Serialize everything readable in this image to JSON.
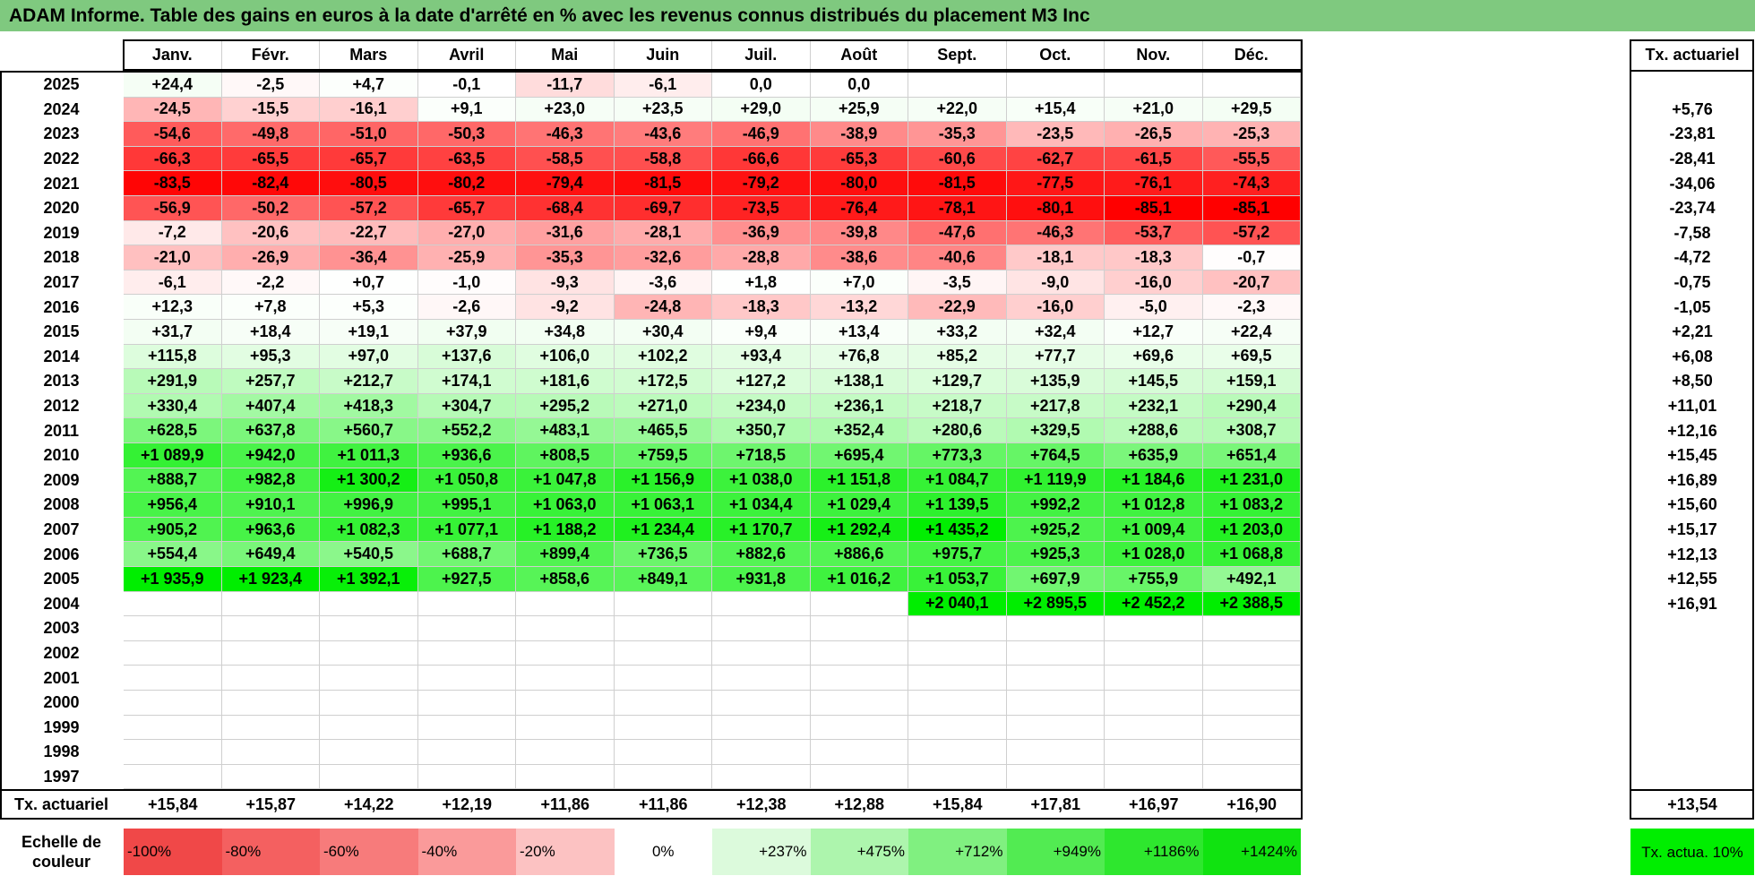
{
  "title": "ADAM Informe. Table des gains en euros à la date d'arrêté en % avec les revenus connus distribués du placement M3 Inc",
  "months": [
    "Janv.",
    "Févr.",
    "Mars",
    "Avril",
    "Mai",
    "Juin",
    "Juil.",
    "Août",
    "Sept.",
    "Oct.",
    "Nov.",
    "Déc."
  ],
  "actuarial_header": "Tx. actuariel",
  "rows": [
    {
      "year": "2025",
      "values": [
        "+24,4",
        "-2,5",
        "+4,7",
        "-0,1",
        "-11,7",
        "-6,1",
        "0,0",
        "0,0",
        "",
        "",
        "",
        ""
      ],
      "actuarial": ""
    },
    {
      "year": "2024",
      "values": [
        "-24,5",
        "-15,5",
        "-16,1",
        "+9,1",
        "+23,0",
        "+23,5",
        "+29,0",
        "+25,9",
        "+22,0",
        "+15,4",
        "+21,0",
        "+29,5"
      ],
      "actuarial": "+5,76"
    },
    {
      "year": "2023",
      "values": [
        "-54,6",
        "-49,8",
        "-51,0",
        "-50,3",
        "-46,3",
        "-43,6",
        "-46,9",
        "-38,9",
        "-35,3",
        "-23,5",
        "-26,5",
        "-25,3"
      ],
      "actuarial": "-23,81"
    },
    {
      "year": "2022",
      "values": [
        "-66,3",
        "-65,5",
        "-65,7",
        "-63,5",
        "-58,5",
        "-58,8",
        "-66,6",
        "-65,3",
        "-60,6",
        "-62,7",
        "-61,5",
        "-55,5"
      ],
      "actuarial": "-28,41"
    },
    {
      "year": "2021",
      "values": [
        "-83,5",
        "-82,4",
        "-80,5",
        "-80,2",
        "-79,4",
        "-81,5",
        "-79,2",
        "-80,0",
        "-81,5",
        "-77,5",
        "-76,1",
        "-74,3"
      ],
      "actuarial": "-34,06"
    },
    {
      "year": "2020",
      "values": [
        "-56,9",
        "-50,2",
        "-57,2",
        "-65,7",
        "-68,4",
        "-69,7",
        "-73,5",
        "-76,4",
        "-78,1",
        "-80,1",
        "-85,1",
        "-85,1"
      ],
      "actuarial": "-23,74"
    },
    {
      "year": "2019",
      "values": [
        "-7,2",
        "-20,6",
        "-22,7",
        "-27,0",
        "-31,6",
        "-28,1",
        "-36,9",
        "-39,8",
        "-47,6",
        "-46,3",
        "-53,7",
        "-57,2"
      ],
      "actuarial": "-7,58"
    },
    {
      "year": "2018",
      "values": [
        "-21,0",
        "-26,9",
        "-36,4",
        "-25,9",
        "-35,3",
        "-32,6",
        "-28,8",
        "-38,6",
        "-40,6",
        "-18,1",
        "-18,3",
        "-0,7"
      ],
      "actuarial": "-4,72"
    },
    {
      "year": "2017",
      "values": [
        "-6,1",
        "-2,2",
        "+0,7",
        "-1,0",
        "-9,3",
        "-3,6",
        "+1,8",
        "+7,0",
        "-3,5",
        "-9,0",
        "-16,0",
        "-20,7"
      ],
      "actuarial": "-0,75"
    },
    {
      "year": "2016",
      "values": [
        "+12,3",
        "+7,8",
        "+5,3",
        "-2,6",
        "-9,2",
        "-24,8",
        "-18,3",
        "-13,2",
        "-22,9",
        "-16,0",
        "-5,0",
        "-2,3"
      ],
      "actuarial": "-1,05"
    },
    {
      "year": "2015",
      "values": [
        "+31,7",
        "+18,4",
        "+19,1",
        "+37,9",
        "+34,8",
        "+30,4",
        "+9,4",
        "+13,4",
        "+33,2",
        "+32,4",
        "+12,7",
        "+22,4"
      ],
      "actuarial": "+2,21"
    },
    {
      "year": "2014",
      "values": [
        "+115,8",
        "+95,3",
        "+97,0",
        "+137,6",
        "+106,0",
        "+102,2",
        "+93,4",
        "+76,8",
        "+85,2",
        "+77,7",
        "+69,6",
        "+69,5"
      ],
      "actuarial": "+6,08"
    },
    {
      "year": "2013",
      "values": [
        "+291,9",
        "+257,7",
        "+212,7",
        "+174,1",
        "+181,6",
        "+172,5",
        "+127,2",
        "+138,1",
        "+129,7",
        "+135,9",
        "+145,5",
        "+159,1"
      ],
      "actuarial": "+8,50"
    },
    {
      "year": "2012",
      "values": [
        "+330,4",
        "+407,4",
        "+418,3",
        "+304,7",
        "+295,2",
        "+271,0",
        "+234,0",
        "+236,1",
        "+218,7",
        "+217,8",
        "+232,1",
        "+290,4"
      ],
      "actuarial": "+11,01"
    },
    {
      "year": "2011",
      "values": [
        "+628,5",
        "+637,8",
        "+560,7",
        "+552,2",
        "+483,1",
        "+465,5",
        "+350,7",
        "+352,4",
        "+280,6",
        "+329,5",
        "+288,6",
        "+308,7"
      ],
      "actuarial": "+12,16"
    },
    {
      "year": "2010",
      "values": [
        "+1 089,9",
        "+942,0",
        "+1 011,3",
        "+936,6",
        "+808,5",
        "+759,5",
        "+718,5",
        "+695,4",
        "+773,3",
        "+764,5",
        "+635,9",
        "+651,4"
      ],
      "actuarial": "+15,45"
    },
    {
      "year": "2009",
      "values": [
        "+888,7",
        "+982,8",
        "+1 300,2",
        "+1 050,8",
        "+1 047,8",
        "+1 156,9",
        "+1 038,0",
        "+1 151,8",
        "+1 084,7",
        "+1 119,9",
        "+1 184,6",
        "+1 231,0"
      ],
      "actuarial": "+16,89"
    },
    {
      "year": "2008",
      "values": [
        "+956,4",
        "+910,1",
        "+996,9",
        "+995,1",
        "+1 063,0",
        "+1 063,1",
        "+1 034,4",
        "+1 029,4",
        "+1 139,5",
        "+992,2",
        "+1 012,8",
        "+1 083,2"
      ],
      "actuarial": "+15,60"
    },
    {
      "year": "2007",
      "values": [
        "+905,2",
        "+963,6",
        "+1 082,3",
        "+1 077,1",
        "+1 188,2",
        "+1 234,4",
        "+1 170,7",
        "+1 292,4",
        "+1 435,2",
        "+925,2",
        "+1 009,4",
        "+1 203,0"
      ],
      "actuarial": "+15,17"
    },
    {
      "year": "2006",
      "values": [
        "+554,4",
        "+649,4",
        "+540,5",
        "+688,7",
        "+899,4",
        "+736,5",
        "+882,6",
        "+886,6",
        "+975,7",
        "+925,3",
        "+1 028,0",
        "+1 068,8"
      ],
      "actuarial": "+12,13"
    },
    {
      "year": "2005",
      "values": [
        "+1 935,9",
        "+1 923,4",
        "+1 392,1",
        "+927,5",
        "+858,6",
        "+849,1",
        "+931,8",
        "+1 016,2",
        "+1 053,7",
        "+697,9",
        "+755,9",
        "+492,1"
      ],
      "actuarial": "+12,55"
    },
    {
      "year": "2004",
      "values": [
        "",
        "",
        "",
        "",
        "",
        "",
        "",
        "",
        "+2 040,1",
        "+2 895,5",
        "+2 452,2",
        "+2 388,5"
      ],
      "actuarial": "+16,91"
    },
    {
      "year": "2003",
      "values": [
        "",
        "",
        "",
        "",
        "",
        "",
        "",
        "",
        "",
        "",
        "",
        ""
      ],
      "actuarial": ""
    },
    {
      "year": "2002",
      "values": [
        "",
        "",
        "",
        "",
        "",
        "",
        "",
        "",
        "",
        "",
        "",
        ""
      ],
      "actuarial": ""
    },
    {
      "year": "2001",
      "values": [
        "",
        "",
        "",
        "",
        "",
        "",
        "",
        "",
        "",
        "",
        "",
        ""
      ],
      "actuarial": ""
    },
    {
      "year": "2000",
      "values": [
        "",
        "",
        "",
        "",
        "",
        "",
        "",
        "",
        "",
        "",
        "",
        ""
      ],
      "actuarial": ""
    },
    {
      "year": "1999",
      "values": [
        "",
        "",
        "",
        "",
        "",
        "",
        "",
        "",
        "",
        "",
        "",
        ""
      ],
      "actuarial": ""
    },
    {
      "year": "1998",
      "values": [
        "",
        "",
        "",
        "",
        "",
        "",
        "",
        "",
        "",
        "",
        "",
        ""
      ],
      "actuarial": ""
    },
    {
      "year": "1997",
      "values": [
        "",
        "",
        "",
        "",
        "",
        "",
        "",
        "",
        "",
        "",
        "",
        ""
      ],
      "actuarial": ""
    }
  ],
  "footer": {
    "label": "Tx. actuariel",
    "values": [
      "+15,84",
      "+15,87",
      "+14,22",
      "+12,19",
      "+11,86",
      "+11,86",
      "+12,38",
      "+12,88",
      "+15,84",
      "+17,81",
      "+16,97",
      "+16,90"
    ],
    "total": "+13,54"
  },
  "color_scale": {
    "label": "Echelle de couleur",
    "steps": [
      {
        "text": "-100%",
        "color": "#f04848"
      },
      {
        "text": "-80%",
        "color": "#f46060"
      },
      {
        "text": "-60%",
        "color": "#f77b7b"
      },
      {
        "text": "-40%",
        "color": "#fa9a9a"
      },
      {
        "text": "-20%",
        "color": "#fcc2c2"
      },
      {
        "text": "0%",
        "color": "#ffffff"
      },
      {
        "text": "+237%",
        "color": "#dcfadc"
      },
      {
        "text": "+475%",
        "color": "#adf5ad"
      },
      {
        "text": "+712%",
        "color": "#80f080"
      },
      {
        "text": "+949%",
        "color": "#52eb52"
      },
      {
        "text": "+1186%",
        "color": "#2ee72e"
      },
      {
        "text": "+1424%",
        "color": "#10e310"
      }
    ],
    "actuarial_ref": "Tx. actua. 10%",
    "actuarial_ref_color": "#00ee00"
  },
  "colors": {
    "title_bar": "#7fc97f",
    "max_red": "#ff0000",
    "max_green": "#00ee00"
  }
}
